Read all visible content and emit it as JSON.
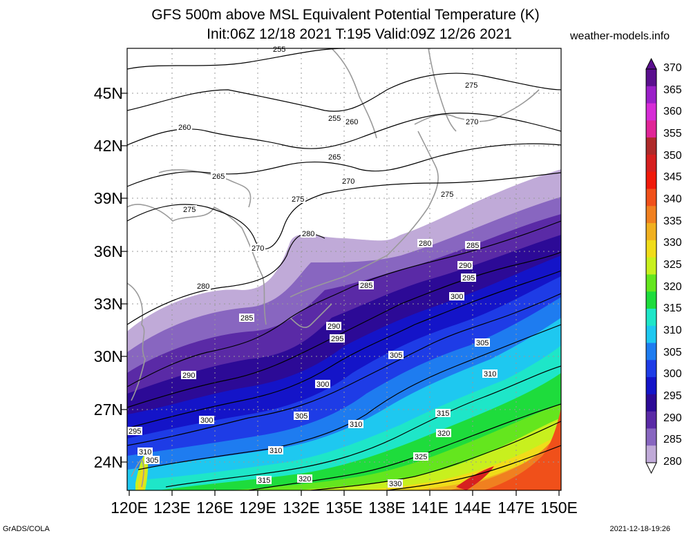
{
  "header": {
    "title_line1": "GFS 500m above MSL Equivalent Potential Temperature (K)",
    "title_line2": "Init:06Z 12/18 2021 T:195 Valid:09Z 12/26 2021",
    "site": "weather-models.info"
  },
  "axes": {
    "lat_labels": [
      "45N",
      "42N",
      "39N",
      "36N",
      "33N",
      "30N",
      "27N",
      "24N"
    ],
    "lon_labels": [
      "120E",
      "123E",
      "126E",
      "129E",
      "132E",
      "135E",
      "138E",
      "141E",
      "144E",
      "147E",
      "150E"
    ]
  },
  "colorbar": {
    "levels": [
      "370",
      "365",
      "360",
      "355",
      "350",
      "345",
      "340",
      "335",
      "330",
      "325",
      "320",
      "315",
      "310",
      "305",
      "300",
      "295",
      "290",
      "285",
      "280"
    ],
    "colors": [
      "#5a0f8e",
      "#9a1fc8",
      "#d62cd6",
      "#e02597",
      "#ae2a2a",
      "#d62020",
      "#f01a0a",
      "#f0501a",
      "#f08020",
      "#f0b020",
      "#f0dc1a",
      "#c8f01e",
      "#64e61e",
      "#1edc3c",
      "#1ee6c8",
      "#1ec8f0",
      "#1e7cf0",
      "#1e3ce6",
      "#1414c8",
      "#2c0a96",
      "#5a2aa6",
      "#8866c0",
      "#c0aad8"
    ]
  },
  "contours": {
    "labels": [
      "255",
      "275",
      "255",
      "260",
      "270",
      "260",
      "265",
      "265",
      "270",
      "275",
      "275",
      "275",
      "270",
      "280",
      "280",
      "285",
      "280",
      "290",
      "295",
      "285",
      "300",
      "285",
      "290",
      "295",
      "305",
      "305",
      "290",
      "300",
      "310",
      "300",
      "295",
      "305",
      "310",
      "315",
      "320",
      "310",
      "310",
      "305",
      "325",
      "315",
      "320",
      "330"
    ]
  },
  "footer": {
    "left": "GrADS/COLA",
    "right": "2021-12-18-19:26"
  }
}
